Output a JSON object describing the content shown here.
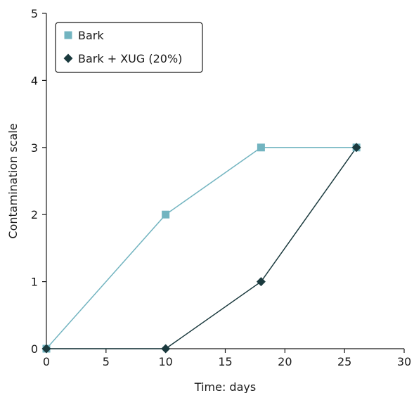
{
  "chart_data": {
    "type": "line",
    "xlabel": "Time: days",
    "ylabel": "Contamination scale",
    "xlim": [
      0,
      30
    ],
    "ylim": [
      0,
      5
    ],
    "xticks": [
      "0",
      "5",
      "10",
      "15",
      "20",
      "25",
      "30"
    ],
    "yticks": [
      "0",
      "1",
      "2",
      "3",
      "4",
      "5"
    ],
    "grid": false,
    "legend_position": "top-left",
    "series": [
      {
        "name": "Bark",
        "marker": "square",
        "color": "#72b4c0",
        "x": [
          0,
          10,
          18,
          26
        ],
        "y": [
          0,
          2,
          3,
          3
        ]
      },
      {
        "name": "Bark + XUG (20%)",
        "marker": "diamond",
        "color": "#1b3a3e",
        "x": [
          0,
          10,
          18,
          26
        ],
        "y": [
          0,
          0,
          1,
          3
        ]
      }
    ]
  }
}
